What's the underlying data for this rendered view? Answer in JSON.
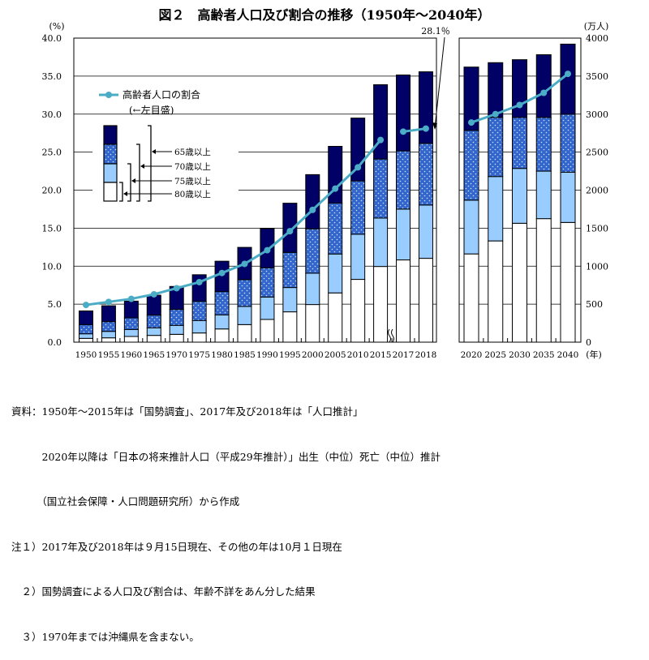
{
  "chart_data": {
    "type": "bar",
    "title": "図２　高齢者人口及び割合の推移（1950年～2040年）",
    "stacked": "nested",
    "left_axis": {
      "unit": "(%)",
      "ylim": [
        0,
        40
      ],
      "ticks": [
        "0.0",
        "5.0",
        "10.0",
        "15.0",
        "20.0",
        "25.0",
        "30.0",
        "35.0",
        "40.0"
      ]
    },
    "right_axis": {
      "unit": "(万人)",
      "ylim": [
        0,
        4000
      ],
      "ticks": [
        "0",
        "500",
        "1000",
        "1500",
        "2000",
        "2500",
        "3000",
        "3500",
        "4000"
      ]
    },
    "x_unit": "(年)",
    "grid": true,
    "axis_break_after": "2015",
    "panels": [
      {
        "categories": [
          "1950",
          "1955",
          "1960",
          "1965",
          "1970",
          "1975",
          "1980",
          "1985",
          "1990",
          "1995",
          "2000",
          "2005",
          "2010",
          "2015",
          "2017",
          "2018"
        ],
        "pop_65_plus": [
          411,
          479,
          540,
          618,
          733,
          887,
          1065,
          1247,
          1493,
          1828,
          2204,
          2576,
          2948,
          3387,
          3515,
          3557
        ],
        "pop_70_plus": [
          231,
          270,
          320,
          356,
          431,
          537,
          665,
          822,
          979,
          1181,
          1491,
          1829,
          2121,
          2409,
          2516,
          2616
        ],
        "pop_75_plus": [
          110,
          142,
          167,
          189,
          221,
          285,
          359,
          470,
          594,
          719,
          907,
          1160,
          1420,
          1633,
          1751,
          1804
        ],
        "pop_80_plus": [
          50,
          57,
          75,
          89,
          103,
          121,
          174,
          231,
          299,
          399,
          495,
          648,
          826,
          996,
          1082,
          1103
        ],
        "ratio_pct": [
          4.9,
          5.3,
          5.7,
          6.3,
          7.1,
          7.9,
          9.1,
          10.3,
          12.1,
          14.6,
          17.4,
          20.2,
          23.0,
          26.6,
          27.7,
          28.1
        ]
      },
      {
        "categories": [
          "2020",
          "2025",
          "2030",
          "2035",
          "2040"
        ],
        "pop_65_plus": [
          3619,
          3677,
          3716,
          3782,
          3921
        ],
        "pop_70_plus": [
          2786,
          2957,
          2957,
          2957,
          3000
        ],
        "pop_75_plus": [
          1868,
          2179,
          2286,
          2250,
          2236
        ],
        "pop_80_plus": [
          1161,
          1332,
          1564,
          1625,
          1575
        ],
        "ratio_pct": [
          28.9,
          30.0,
          31.2,
          32.8,
          35.3
        ]
      }
    ],
    "annotation": "28.1％",
    "legend": {
      "line_label": "高齢者人口の割合",
      "line_sub": "(←左目盛)",
      "bars": [
        "65歳以上",
        "70歳以上",
        "75歳以上",
        "80歳以上"
      ],
      "placement": "top-left"
    },
    "colors": {
      "age65_69": "#000066",
      "age70_74": "#3366cc",
      "age75_79": "#99ccff",
      "age80_plus": "#ffffff",
      "line": "#4bacc6"
    }
  },
  "notes": [
    "資料：1950年～2015年は「国勢調査」、2017年及び2018年は「人口推計」",
    "　　　2020年以降は「日本の将来推計人口（平成29年推計）」出生（中位）死亡（中位）推計",
    "　　　（国立社会保障・人口問題研究所）から作成",
    "注１）2017年及び2018年は９月15日現在、その他の年は10月１日現在",
    "　２）国勢調査による人口及び割合は、年齢不詳をあん分した結果",
    "　３）1970年までは沖縄県を含まない。"
  ]
}
